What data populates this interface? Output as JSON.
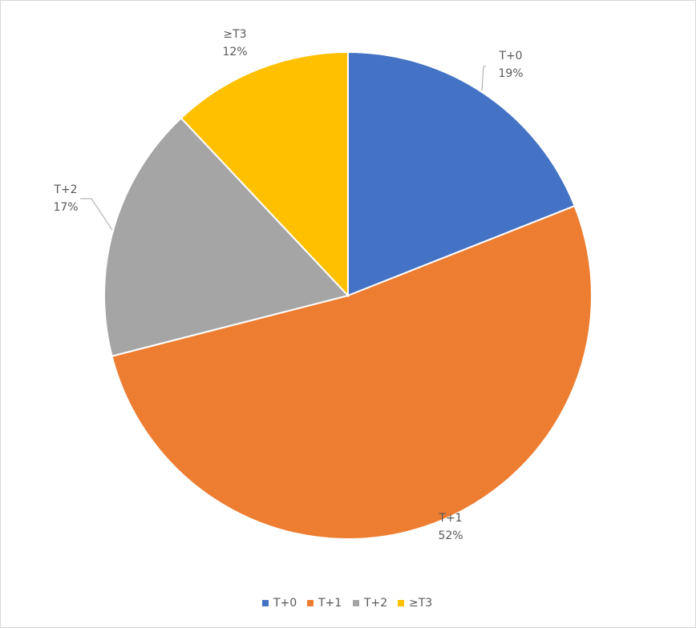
{
  "chart_data": {
    "type": "pie",
    "categories": [
      "T+0",
      "T+1",
      "T+2",
      "≥T3"
    ],
    "values": [
      19,
      52,
      17,
      12
    ],
    "value_labels": [
      "19%",
      "52%",
      "17%",
      "12%"
    ],
    "colors": [
      "#4472c4",
      "#ed7d31",
      "#a5a5a5",
      "#ffc000"
    ],
    "legend": "bottom"
  }
}
